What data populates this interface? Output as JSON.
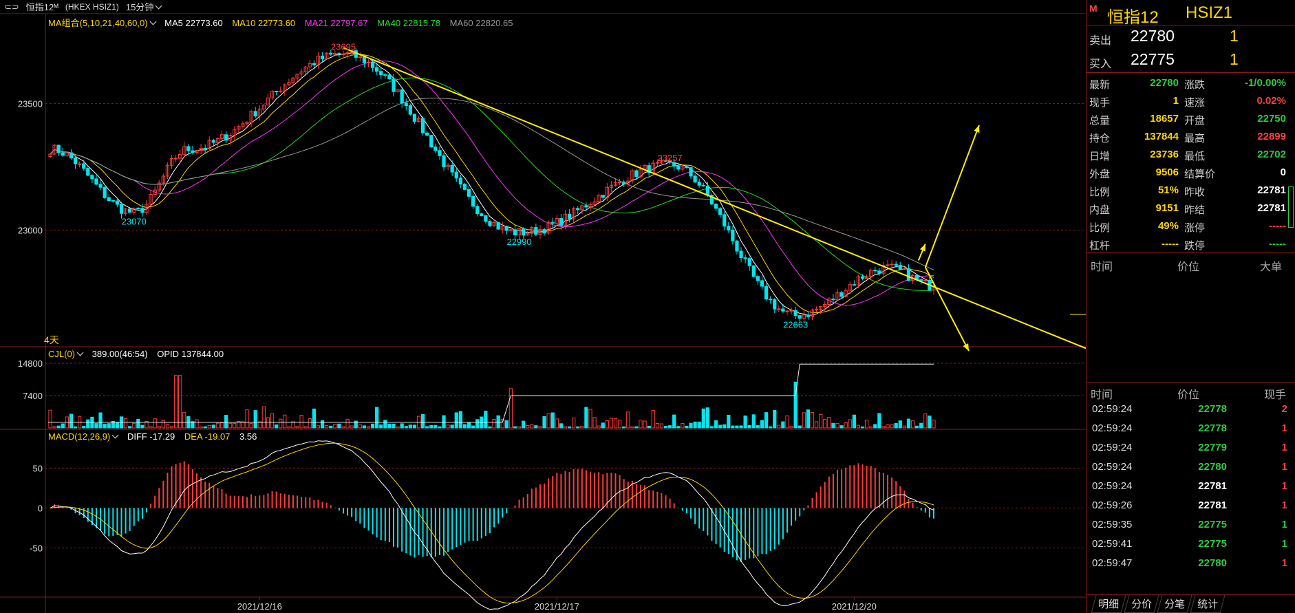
{
  "titlebar": {
    "icon": "link-icon",
    "instrument": "恒指12ᴹ",
    "code": "(HKEX HSIZ1)",
    "period": "15分钟"
  },
  "ma_legend": {
    "label": "MA组合(5,10,21,40,60,0)",
    "items": [
      {
        "text": "MA5 22773.60",
        "color": "#ffffff"
      },
      {
        "text": "MA10 22773.60",
        "color": "#ffd700"
      },
      {
        "text": "MA21 22797.67",
        "color": "#ff33ff"
      },
      {
        "text": "MA40 22815.78",
        "color": "#22dd22"
      },
      {
        "text": "MA60 22820.65",
        "color": "#999999"
      }
    ]
  },
  "price_axis": {
    "labels": [
      "23500",
      "23000"
    ]
  },
  "annotations": {
    "high": "23695",
    "low1": "23070",
    "high2": "23257",
    "low2": "22990",
    "low3": "22663",
    "days": "4天"
  },
  "volume_panel": {
    "legend": "CJL(0)",
    "value": "389.00(46:54)",
    "opid": "OPID 137844.00",
    "axis_labels": [
      "14800",
      "7400"
    ]
  },
  "macd_panel": {
    "legend": "MACD(12,26,9)",
    "diff": "DIFF -17.29",
    "dea": "DEA -19.07",
    "macd": "3.56",
    "axis_labels": [
      "50",
      "0",
      "-50"
    ]
  },
  "dates": [
    "2021/12/16",
    "2021/12/17",
    "2021/12/20"
  ],
  "chart_data": {
    "type": "candlestick",
    "title": "恒指12 (HKEX HSIZ1) 15分钟",
    "ylim": [
      22550,
      23800
    ],
    "price_ticks": [
      23500,
      23000
    ],
    "anchor_points": [
      {
        "label": "23070",
        "value": 23070
      },
      {
        "label": "23695",
        "value": 23695
      },
      {
        "label": "22990",
        "value": 22990
      },
      {
        "label": "23257",
        "value": 23257
      },
      {
        "label": "22663",
        "value": 22663
      }
    ],
    "last_price": 22780,
    "volume_ticks": [
      14800,
      7400
    ],
    "opid_level": 137844,
    "macd_ticks": [
      50,
      0,
      -50
    ],
    "macd_last": {
      "diff": -17.29,
      "dea": -19.07,
      "macd": 3.56
    },
    "x_dates": [
      "2021/12/16",
      "2021/12/17",
      "2021/12/20"
    ]
  },
  "right_panel": {
    "m_badge": "M",
    "name": "恒指12",
    "code": "HSIZ1",
    "sell": {
      "label": "卖出",
      "price": "22780",
      "qty": "1"
    },
    "buy": {
      "label": "买入",
      "price": "22775",
      "qty": "1"
    },
    "stats_left": [
      {
        "label": "最新",
        "value": "22780",
        "color": "#2ecc40"
      },
      {
        "label": "现手",
        "value": "1",
        "color": "#ffd700"
      },
      {
        "label": "总量",
        "value": "18657",
        "color": "#ffd700"
      },
      {
        "label": "持仓",
        "value": "137844",
        "color": "#ffd700"
      },
      {
        "label": "日增",
        "value": "23736",
        "color": "#ffd700"
      },
      {
        "label": "外盘",
        "value": "9506",
        "color": "#ffd700"
      },
      {
        "label": "比例",
        "value": "51%",
        "color": "#ffd700"
      },
      {
        "label": "内盘",
        "value": "9151",
        "color": "#ffd700"
      },
      {
        "label": "比例",
        "value": "49%",
        "color": "#ffd700"
      },
      {
        "label": "杠杆",
        "value": "-----",
        "color": "#ffd700"
      }
    ],
    "stats_right": [
      {
        "label": "涨跌",
        "value": "-1/0.00%",
        "color": "#2ecc40"
      },
      {
        "label": "速涨",
        "value": "0.02%",
        "color": "#ff4040"
      },
      {
        "label": "开盘",
        "value": "22750",
        "color": "#2ecc40"
      },
      {
        "label": "最高",
        "value": "22899",
        "color": "#ff4040"
      },
      {
        "label": "最低",
        "value": "22702",
        "color": "#2ecc40"
      },
      {
        "label": "结算价",
        "value": "0",
        "color": "#ffffff"
      },
      {
        "label": "昨收",
        "value": "22781",
        "color": "#ffffff"
      },
      {
        "label": "昨结",
        "value": "22781",
        "color": "#ffffff"
      },
      {
        "label": "涨停",
        "value": "-----",
        "color": "#ff4040"
      },
      {
        "label": "跌停",
        "value": "-----",
        "color": "#2ecc40"
      }
    ],
    "tick_header": {
      "time": "时间",
      "price": "价位",
      "big": "大单"
    },
    "trade_header": {
      "time": "时间",
      "price": "价位",
      "qty": "现手"
    },
    "trades": [
      {
        "time": "02:59:24",
        "price": "22778",
        "qty": "2",
        "pc": "#2ecc40",
        "qc": "#ff4040"
      },
      {
        "time": "02:59:24",
        "price": "22778",
        "qty": "1",
        "pc": "#2ecc40",
        "qc": "#ff4040"
      },
      {
        "time": "02:59:24",
        "price": "22779",
        "qty": "1",
        "pc": "#2ecc40",
        "qc": "#ff4040"
      },
      {
        "time": "02:59:24",
        "price": "22780",
        "qty": "1",
        "pc": "#2ecc40",
        "qc": "#ff4040"
      },
      {
        "time": "02:59:24",
        "price": "22781",
        "qty": "1",
        "pc": "#ffffff",
        "qc": "#ff4040"
      },
      {
        "time": "02:59:26",
        "price": "22781",
        "qty": "1",
        "pc": "#ffffff",
        "qc": "#ff4040"
      },
      {
        "time": "02:59:35",
        "price": "22775",
        "qty": "1",
        "pc": "#2ecc40",
        "qc": "#2ecc40"
      },
      {
        "time": "02:59:41",
        "price": "22775",
        "qty": "1",
        "pc": "#2ecc40",
        "qc": "#2ecc40"
      },
      {
        "time": "02:59:47",
        "price": "22780",
        "qty": "1",
        "pc": "#2ecc40",
        "qc": "#ff4040"
      }
    ],
    "tabs": [
      "明细",
      "分价",
      "分笔",
      "统计"
    ]
  }
}
